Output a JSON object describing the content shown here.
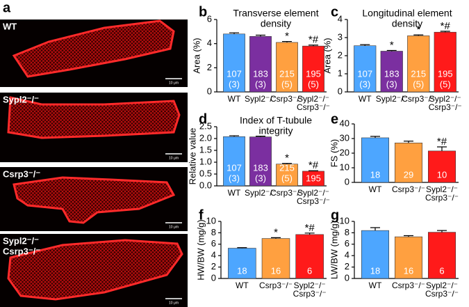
{
  "panel_a": {
    "label": "a",
    "images": [
      {
        "label": [
          "WT"
        ],
        "scale": "10 μm"
      },
      {
        "label": [
          "Sypl2⁻/⁻"
        ],
        "scale": "10 μm"
      },
      {
        "label": [
          "Csrp3⁻/⁻"
        ],
        "scale": "10 μm"
      },
      {
        "label": [
          "Sypl2⁻/⁻",
          "Csrp3⁻/⁻"
        ],
        "scale": "10 μm"
      }
    ]
  },
  "chart_data": [
    {
      "type": "bar",
      "label": "b",
      "title": [
        "Transverse element",
        "density"
      ],
      "ylabel": "Area (%)",
      "categories": [
        [
          "WT"
        ],
        [
          "Sypl2⁻/⁻"
        ],
        [
          "Csrp3⁻/⁻"
        ],
        [
          "Sypl2⁻/⁻",
          "Csrp3⁻/⁻"
        ]
      ],
      "values": [
        4.8,
        4.6,
        4.1,
        3.8
      ],
      "errors": [
        0.1,
        0.1,
        0.08,
        0.08
      ],
      "colors": [
        "#4da6ff",
        "#7b2fa0",
        "#ffa040",
        "#ff1a1a"
      ],
      "n": [
        107,
        183,
        215,
        195
      ],
      "animals": [
        "(3)",
        "(3)",
        "(5)",
        "(5)"
      ],
      "significance": [
        null,
        null,
        "*",
        "*#"
      ],
      "ylim": [
        0,
        6
      ],
      "yticks": [
        0,
        2,
        4,
        6
      ]
    },
    {
      "type": "bar",
      "label": "c",
      "title": [
        "Longitudinal element",
        "density"
      ],
      "ylabel": "Area (%)",
      "categories": [
        [
          "WT"
        ],
        [
          "Sypl2⁻/⁻"
        ],
        [
          "Csrp3⁻/⁻"
        ],
        [
          "Sypl2⁻/⁻",
          "Csrp3⁻/⁻"
        ]
      ],
      "values": [
        2.55,
        2.25,
        3.1,
        3.3
      ],
      "errors": [
        0.06,
        0.04,
        0.05,
        0.05
      ],
      "colors": [
        "#4da6ff",
        "#7b2fa0",
        "#ffa040",
        "#ff1a1a"
      ],
      "n": [
        107,
        183,
        215,
        195
      ],
      "animals": [
        "(3)",
        "(3)",
        "(5)",
        "(5)"
      ],
      "significance": [
        null,
        "*",
        "*",
        "*#"
      ],
      "ylim": [
        0,
        4
      ],
      "yticks": [
        0,
        1,
        2,
        3,
        4
      ]
    },
    {
      "type": "bar",
      "label": "d",
      "title": [
        "Index of T-tubule",
        "integrity"
      ],
      "ylabel": "Relative value",
      "categories": [
        [
          "WT"
        ],
        [
          "Sypl2⁻/⁻"
        ],
        [
          "Csrp3⁻/⁻"
        ],
        [
          "Sypl2⁻/⁻",
          "Csrp3⁻/⁻"
        ]
      ],
      "values": [
        2.08,
        2.07,
        0.92,
        0.62
      ],
      "errors": [
        0.04,
        0.03,
        0.03,
        0.02
      ],
      "colors": [
        "#4da6ff",
        "#7b2fa0",
        "#ffa040",
        "#ff1a1a"
      ],
      "n": [
        107,
        183,
        215,
        195
      ],
      "animals": [
        "(3)",
        "(3)",
        "(5)",
        null
      ],
      "significance": [
        null,
        null,
        "*",
        "*#"
      ],
      "ylim": [
        0,
        2.5
      ],
      "yticks": [
        {
          "value": 0,
          "label": "0.0"
        },
        {
          "value": 0.5,
          "label": "0.5"
        },
        {
          "value": 1,
          "label": "1.0"
        },
        {
          "value": 1.5,
          "label": "1.5"
        },
        {
          "value": 2,
          "label": "2.0"
        },
        2.5
      ]
    },
    {
      "type": "bar",
      "label": "e",
      "ylabel": "FS (%)",
      "categories": [
        [
          "WT"
        ],
        [
          "Csrp3⁻/⁻"
        ],
        [
          "Sypl2⁻/⁻",
          "Csrp3⁻/⁻"
        ]
      ],
      "values": [
        30.5,
        27,
        21.5
      ],
      "errors": [
        1,
        1.2,
        2.8
      ],
      "colors": [
        "#4da6ff",
        "#ffa040",
        "#ff1a1a"
      ],
      "n": [
        18,
        29,
        10
      ],
      "significance": [
        null,
        null,
        "*#"
      ],
      "ylim": [
        0,
        40
      ],
      "yticks": [
        0,
        10,
        20,
        30,
        40
      ]
    },
    {
      "type": "bar",
      "label": "f",
      "ylabel": "HW/BW (mg/g)",
      "categories": [
        [
          "WT"
        ],
        [
          "Csrp3⁻/⁻"
        ],
        [
          "Sypl2⁻/⁻",
          "Csrp3⁻/⁻"
        ]
      ],
      "values": [
        5.3,
        7.0,
        7.7
      ],
      "errors": [
        0.1,
        0.15,
        0.25
      ],
      "colors": [
        "#4da6ff",
        "#ffa040",
        "#ff1a1a"
      ],
      "n": [
        18,
        16,
        6
      ],
      "significance": [
        null,
        "*",
        "*#"
      ],
      "ylim": [
        0,
        10
      ],
      "yticks": [
        0,
        2,
        4,
        6,
        8,
        10
      ]
    },
    {
      "type": "bar",
      "label": "g",
      "ylabel": "LW/BW (mg/g)",
      "categories": [
        [
          "WT"
        ],
        [
          "Csrp3⁻/⁻"
        ],
        [
          "Sypl2⁻/⁻",
          "Csrp3⁻/⁻"
        ]
      ],
      "values": [
        8.4,
        7.3,
        8.1
      ],
      "errors": [
        0.5,
        0.2,
        0.3
      ],
      "colors": [
        "#4da6ff",
        "#ffa040",
        "#ff1a1a"
      ],
      "n": [
        18,
        16,
        6
      ],
      "significance": [
        null,
        null,
        null
      ],
      "ylim": [
        0,
        10
      ],
      "yticks": [
        0,
        2,
        4,
        6,
        8,
        10
      ]
    }
  ]
}
